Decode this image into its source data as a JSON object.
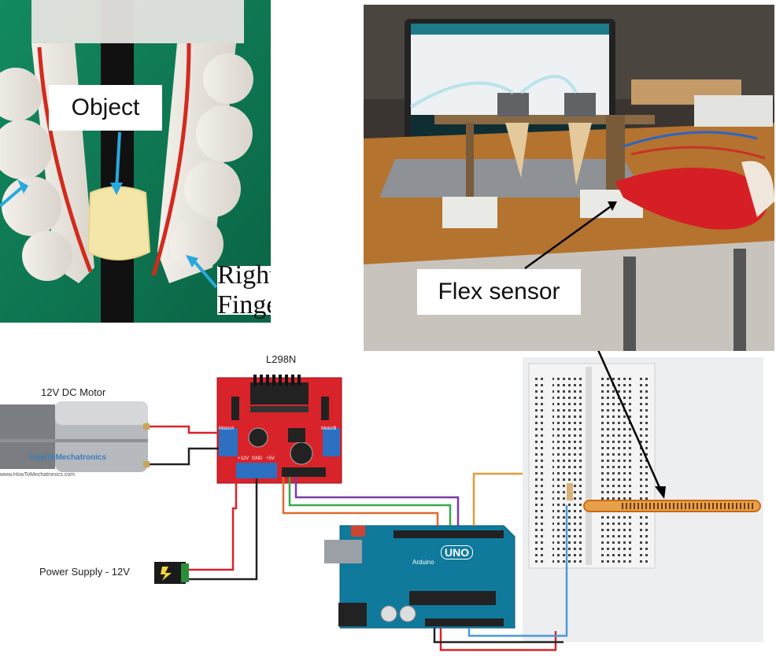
{
  "gripper_photo": {
    "object_label": "Object",
    "right_finger_label": "Right Finger"
  },
  "prototype_photo": {
    "flex_sensor_label": "Flex sensor"
  },
  "circuit": {
    "driver_label": "L298N",
    "motor_label": "12V DC Motor",
    "power_label": "Power Supply - 12V",
    "watermark": "HowToMechatronics",
    "watermark_url": "www.HowToMechatronics.com",
    "arduino_brand": "UNO",
    "arduino_text": "Arduino",
    "driver_pins": [
      "+12V",
      "GND",
      "+5V"
    ],
    "driver_outputs": [
      "MotorA",
      "MotorB"
    ]
  },
  "colors": {
    "gripper_bg": "#0f7a55",
    "arrow_blue": "#29a8e0",
    "driver_red": "#d9232a",
    "arduino_blue": "#0f7a9c",
    "flex_orange": "#e07a1f"
  }
}
